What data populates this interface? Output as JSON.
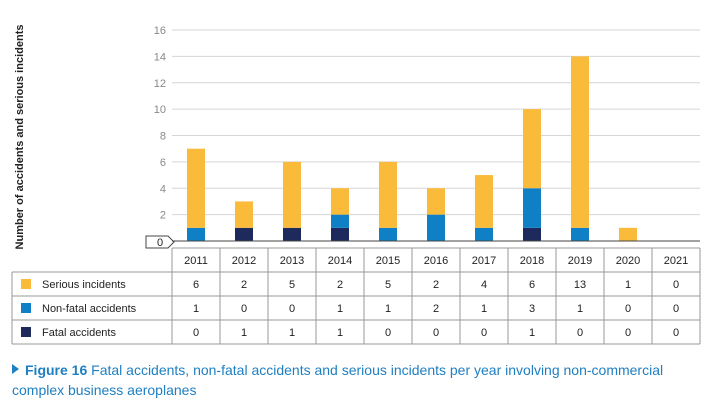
{
  "chart_data": {
    "type": "bar",
    "stacked": true,
    "ylabel": "Number of accidents and serious incidents",
    "ylim": [
      0,
      16
    ],
    "yticks": [
      0,
      2,
      4,
      6,
      8,
      10,
      12,
      14,
      16
    ],
    "categories": [
      "2011",
      "2012",
      "2013",
      "2014",
      "2015",
      "2016",
      "2017",
      "2018",
      "2019",
      "2020",
      "2021"
    ],
    "series": [
      {
        "name": "Fatal accidents",
        "color": "#1f2a5c",
        "values": [
          0,
          1,
          1,
          1,
          0,
          0,
          0,
          1,
          0,
          0,
          0
        ]
      },
      {
        "name": "Non-fatal accidents",
        "color": "#0f7fc6",
        "values": [
          1,
          0,
          0,
          1,
          1,
          2,
          1,
          3,
          1,
          0,
          0
        ]
      },
      {
        "name": "Serious incidents",
        "color": "#fbbb3a",
        "values": [
          6,
          2,
          5,
          2,
          5,
          2,
          4,
          6,
          13,
          1,
          0
        ]
      }
    ],
    "table_rows": [
      {
        "name": "Serious incidents",
        "color": "#fbbb3a",
        "values": [
          6,
          2,
          5,
          2,
          5,
          2,
          4,
          6,
          13,
          1,
          0
        ]
      },
      {
        "name": "Non-fatal accidents",
        "color": "#0f7fc6",
        "values": [
          1,
          0,
          0,
          1,
          1,
          2,
          1,
          3,
          1,
          0,
          0
        ]
      },
      {
        "name": "Fatal accidents",
        "color": "#1f2a5c",
        "values": [
          0,
          1,
          1,
          1,
          0,
          0,
          0,
          1,
          0,
          0,
          0
        ]
      }
    ],
    "grid": true
  },
  "caption": {
    "figure_label": "Figure 16",
    "text": "Fatal accidents, non-fatal accidents and serious incidents per year involving non-commercial complex business aeroplanes"
  }
}
